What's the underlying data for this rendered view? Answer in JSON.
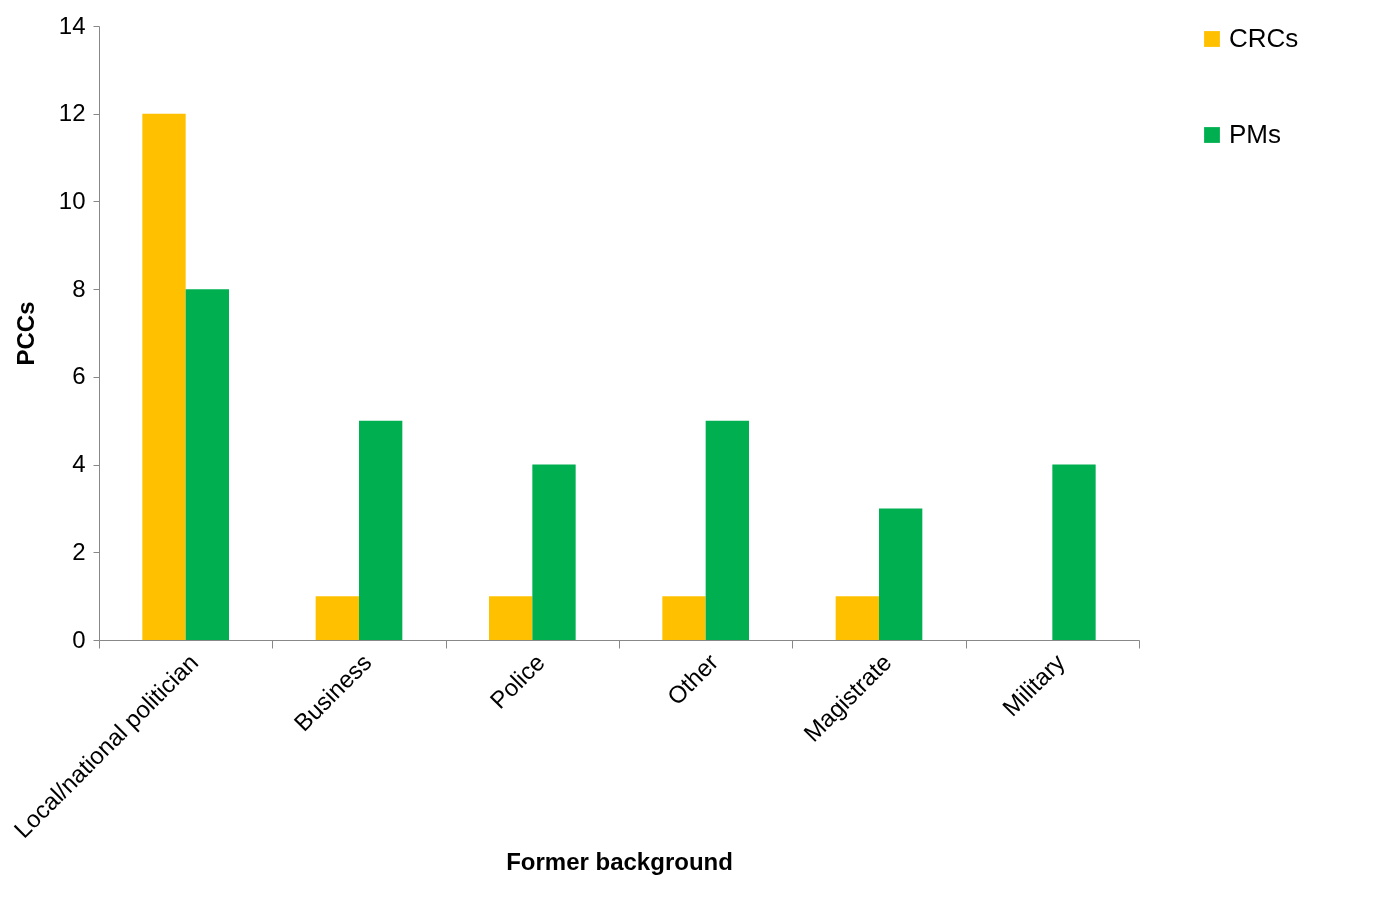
{
  "chart_data": {
    "type": "bar",
    "xlabel": "Former background",
    "ylabel": "PCCs",
    "categories": [
      "Local/national politician",
      "Business",
      "Police",
      "Other",
      "Magistrate",
      "Military"
    ],
    "series": [
      {
        "name": "CRCs",
        "color": "#ffc000",
        "values": [
          12,
          1,
          1,
          1,
          1,
          0
        ]
      },
      {
        "name": "PMs",
        "color": "#00b050",
        "values": [
          8,
          5,
          4,
          5,
          3,
          4
        ]
      }
    ],
    "ylim": [
      0,
      14
    ],
    "yticks": [
      0,
      2,
      4,
      6,
      8,
      10,
      12,
      14
    ],
    "grid": false,
    "legend": "right"
  }
}
